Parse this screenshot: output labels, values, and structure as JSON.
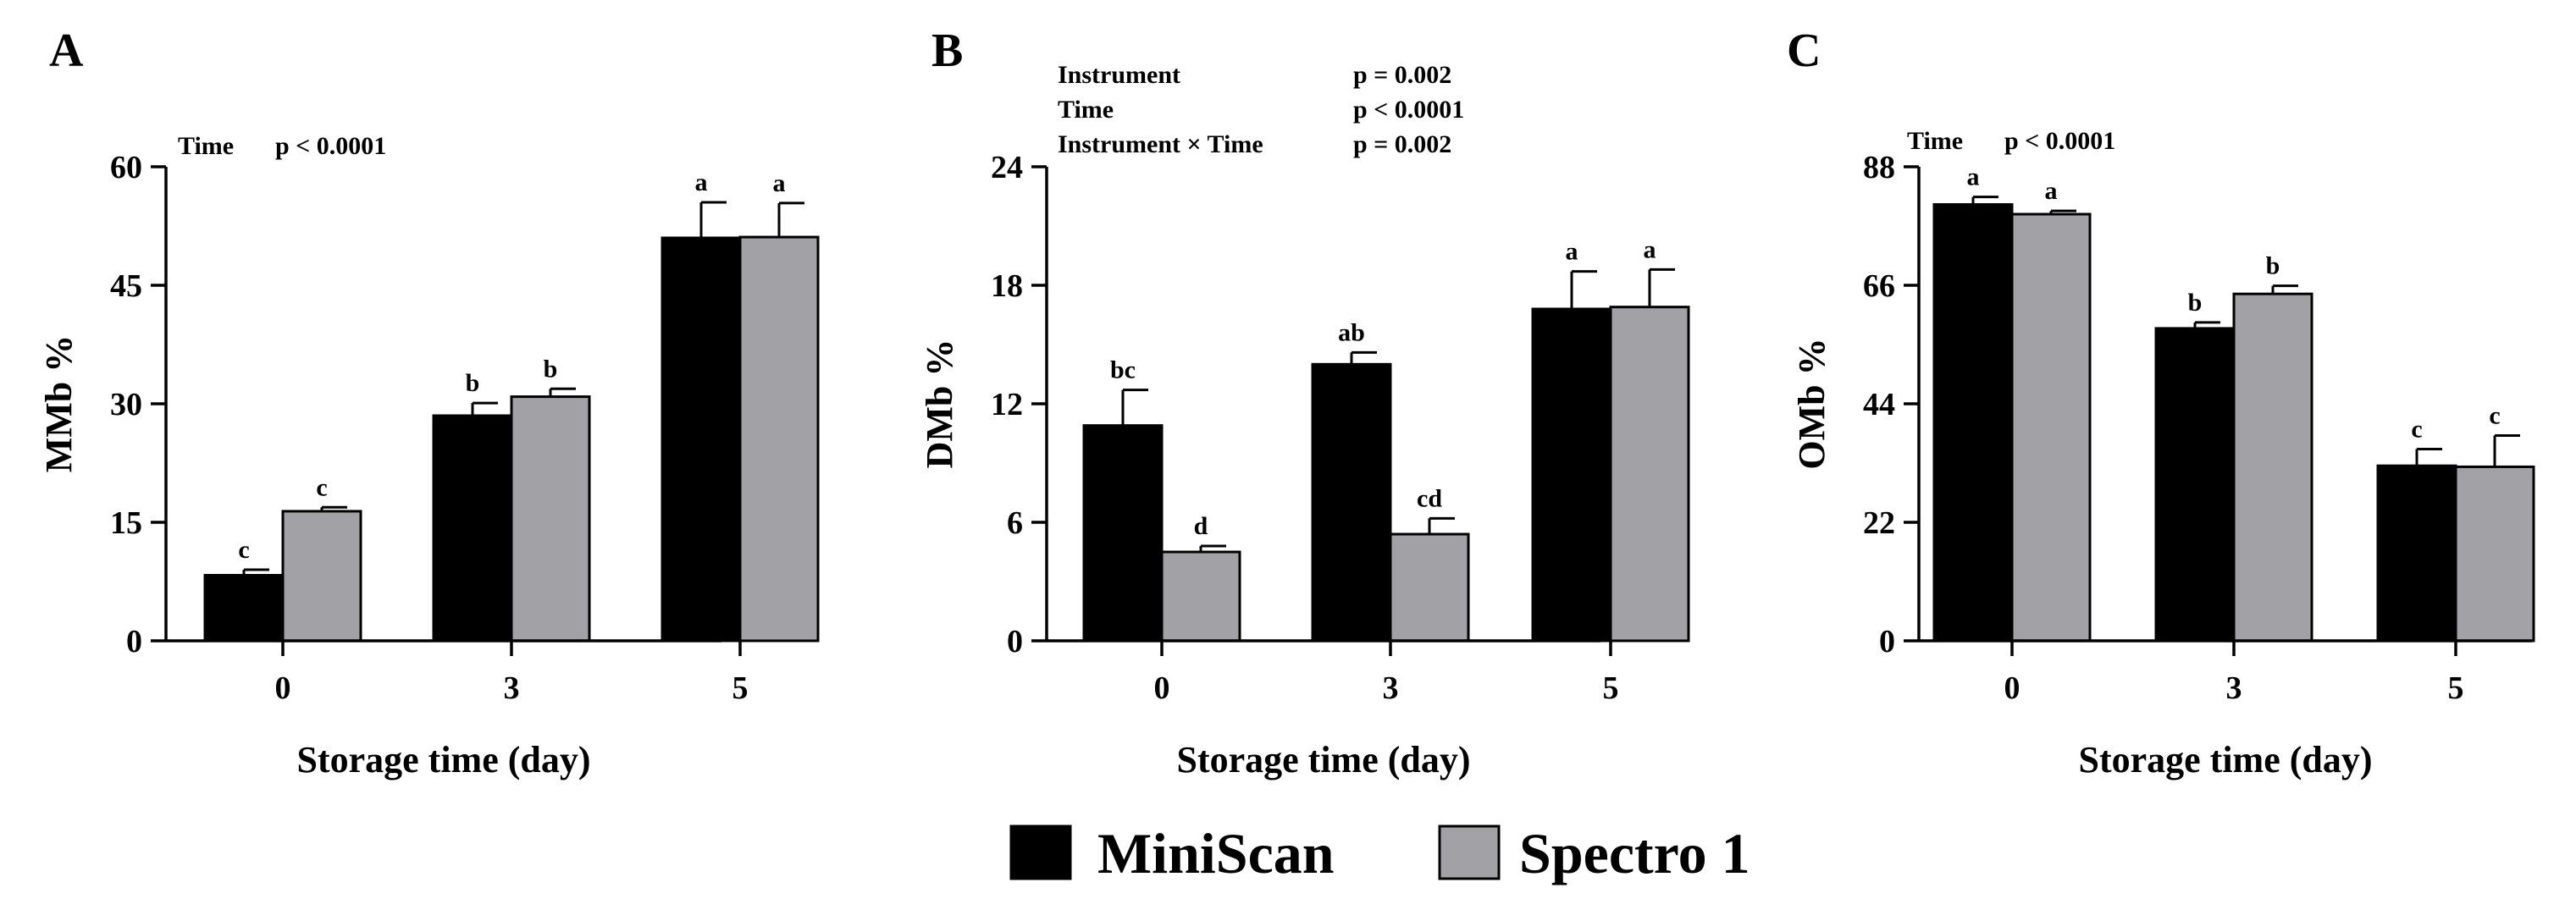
{
  "legend": {
    "items": [
      {
        "name": "MiniScan",
        "color": "#000000"
      },
      {
        "name": "Spectro 1",
        "color": "#a1a1a6"
      }
    ]
  },
  "chart_data": [
    {
      "type": "bar",
      "panel_label": "A",
      "title": "",
      "xlabel": "Storage time (day)",
      "ylabel": "MMb %",
      "categories": [
        "0",
        "3",
        "5"
      ],
      "ylim": [
        0,
        60
      ],
      "yticks": [
        "0",
        "15",
        "30",
        "45",
        "60"
      ],
      "series": [
        {
          "name": "MiniScan",
          "values": [
            8.3,
            28.5,
            51.0
          ],
          "errors": [
            0.7,
            1.6,
            4.5
          ],
          "letters": [
            "c",
            "b",
            "a"
          ]
        },
        {
          "name": "Spectro 1",
          "values": [
            16.4,
            30.9,
            51.1
          ],
          "errors": [
            0.5,
            1.0,
            4.3
          ],
          "letters": [
            "c",
            "b",
            "a"
          ]
        }
      ],
      "stats": [
        {
          "term": "Time",
          "p": "p < 0.0001"
        }
      ]
    },
    {
      "type": "bar",
      "panel_label": "B",
      "title": "",
      "xlabel": "Storage time (day)",
      "ylabel": "DMb %",
      "categories": [
        "0",
        "3",
        "5"
      ],
      "ylim": [
        0,
        24
      ],
      "yticks": [
        "0",
        "6",
        "12",
        "18",
        "24"
      ],
      "series": [
        {
          "name": "MiniScan",
          "values": [
            10.9,
            14.0,
            16.8
          ],
          "errors": [
            1.8,
            0.6,
            1.9
          ],
          "letters": [
            "bc",
            "ab",
            "a"
          ]
        },
        {
          "name": "Spectro 1",
          "values": [
            4.5,
            5.4,
            16.9
          ],
          "errors": [
            0.3,
            0.8,
            1.9
          ],
          "letters": [
            "d",
            "cd",
            "a"
          ]
        }
      ],
      "stats": [
        {
          "term": "Instrument",
          "p": "p = 0.002"
        },
        {
          "term": "Time",
          "p": "p < 0.0001"
        },
        {
          "term": "Instrument × Time",
          "p": "p = 0.002"
        }
      ]
    },
    {
      "type": "bar",
      "panel_label": "C",
      "title": "",
      "xlabel": "Storage time (day)",
      "ylabel": "OMb %",
      "categories": [
        "0",
        "3",
        "5"
      ],
      "ylim": [
        0,
        88
      ],
      "yticks": [
        "0",
        "22",
        "44",
        "66",
        "88"
      ],
      "series": [
        {
          "name": "MiniScan",
          "values": [
            81.0,
            58.0,
            32.5
          ],
          "errors": [
            1.4,
            1.1,
            3.1
          ],
          "letters": [
            "a",
            "b",
            "c"
          ]
        },
        {
          "name": "Spectro 1",
          "values": [
            79.2,
            64.4,
            32.3
          ],
          "errors": [
            0.6,
            1.5,
            5.8
          ],
          "letters": [
            "a",
            "b",
            "c"
          ]
        }
      ],
      "stats": [
        {
          "term": "Time",
          "p": "p < 0.0001"
        }
      ]
    }
  ]
}
